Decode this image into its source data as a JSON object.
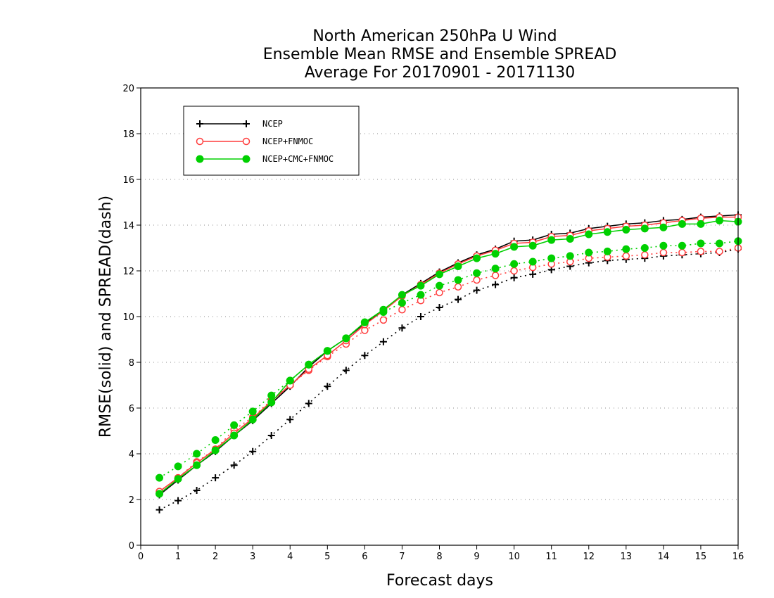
{
  "chart_data": {
    "type": "line",
    "title": [
      "North American 250hPa U Wind",
      "Ensemble Mean RMSE and Ensemble SPREAD",
      "Average For 20170901 - 20171130"
    ],
    "xlabel": "Forecast days",
    "ylabel": "RMSE(solid) and SPREAD(dash)",
    "xlim": [
      0,
      16
    ],
    "ylim": [
      0,
      20
    ],
    "xticks": [
      0,
      1,
      2,
      3,
      4,
      5,
      6,
      7,
      8,
      9,
      10,
      11,
      12,
      13,
      14,
      15,
      16
    ],
    "yticks": [
      0,
      2,
      4,
      6,
      8,
      10,
      12,
      14,
      16,
      18,
      20
    ],
    "grid": "horizontal-dotted",
    "legend_position": "top-left",
    "x": [
      0.5,
      1,
      1.5,
      2,
      2.5,
      3,
      3.5,
      4,
      4.5,
      5,
      5.5,
      6,
      6.5,
      7,
      7.5,
      8,
      8.5,
      9,
      9.5,
      10,
      10.5,
      11,
      11.5,
      12,
      12.5,
      13,
      13.5,
      14,
      14.5,
      15,
      15.5,
      16
    ],
    "series": [
      {
        "name": "NCEP",
        "color": "#000000",
        "marker": "plus",
        "rmse": [
          2.2,
          2.85,
          3.5,
          4.1,
          4.8,
          5.45,
          6.2,
          6.95,
          7.8,
          8.5,
          9.05,
          9.7,
          10.25,
          10.95,
          11.45,
          11.95,
          12.35,
          12.7,
          12.95,
          13.3,
          13.35,
          13.6,
          13.65,
          13.85,
          13.95,
          14.05,
          14.1,
          14.2,
          14.25,
          14.35,
          14.4,
          14.45
        ],
        "spread": [
          1.55,
          1.95,
          2.4,
          2.95,
          3.5,
          4.1,
          4.8,
          5.5,
          6.2,
          6.95,
          7.65,
          8.3,
          8.9,
          9.5,
          10.0,
          10.4,
          10.75,
          11.15,
          11.4,
          11.7,
          11.85,
          12.05,
          12.2,
          12.35,
          12.45,
          12.5,
          12.55,
          12.65,
          12.7,
          12.75,
          12.8,
          12.95
        ]
      },
      {
        "name": "NCEP+FNMOC",
        "color": "#ff3c3c",
        "marker": "open-circle",
        "rmse": [
          2.35,
          2.95,
          3.6,
          4.2,
          4.9,
          5.55,
          6.3,
          7.0,
          7.7,
          8.3,
          8.95,
          9.65,
          10.25,
          10.9,
          11.4,
          11.9,
          12.3,
          12.65,
          12.9,
          13.2,
          13.25,
          13.5,
          13.55,
          13.75,
          13.85,
          13.95,
          14.0,
          14.1,
          14.2,
          14.3,
          14.35,
          14.35
        ],
        "spread": [
          2.35,
          2.95,
          3.65,
          4.2,
          5.05,
          5.6,
          6.35,
          7.0,
          7.65,
          8.25,
          8.8,
          9.4,
          9.85,
          10.3,
          10.7,
          11.05,
          11.3,
          11.6,
          11.8,
          12.0,
          12.15,
          12.3,
          12.4,
          12.55,
          12.6,
          12.65,
          12.7,
          12.8,
          12.8,
          12.85,
          12.85,
          13.0
        ]
      },
      {
        "name": "NCEP+CMC+FNMOC",
        "color": "#00d000",
        "marker": "filled-circle",
        "rmse": [
          2.25,
          2.9,
          3.5,
          4.15,
          4.8,
          5.5,
          6.25,
          7.2,
          7.9,
          8.5,
          9.05,
          9.75,
          10.3,
          10.95,
          11.35,
          11.85,
          12.2,
          12.55,
          12.75,
          13.05,
          13.1,
          13.35,
          13.4,
          13.6,
          13.7,
          13.8,
          13.85,
          13.9,
          14.05,
          14.05,
          14.2,
          14.15
        ],
        "spread": [
          2.95,
          3.45,
          4.0,
          4.6,
          5.25,
          5.85,
          6.55,
          7.2,
          7.9,
          8.5,
          9.05,
          9.75,
          10.2,
          10.6,
          10.95,
          11.35,
          11.6,
          11.9,
          12.1,
          12.3,
          12.4,
          12.55,
          12.65,
          12.8,
          12.85,
          12.95,
          13.0,
          13.1,
          13.1,
          13.2,
          13.2,
          13.3
        ]
      }
    ]
  }
}
